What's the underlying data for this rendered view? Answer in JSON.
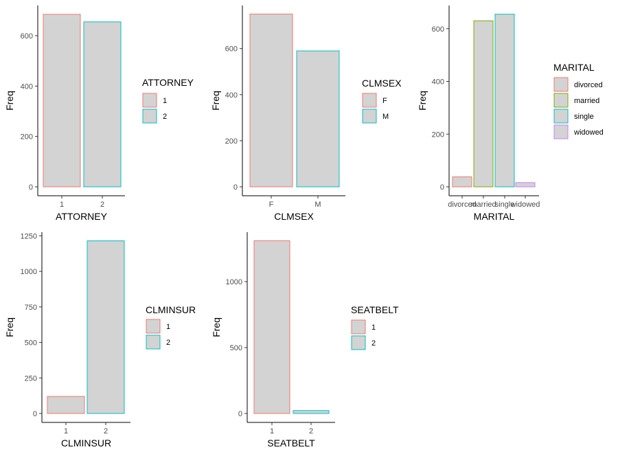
{
  "chart_data": [
    {
      "type": "bar",
      "xlabel": "ATTORNEY",
      "ylabel": "Freq",
      "categories": [
        "1",
        "2"
      ],
      "values": [
        685,
        655
      ],
      "colors": [
        "#F8766D",
        "#00BFC4"
      ],
      "ylim": [
        0,
        720
      ],
      "yticks": [
        0,
        200,
        400,
        600
      ],
      "legend": {
        "title": "ATTORNEY",
        "entries": [
          "1",
          "2"
        ],
        "placement": "right"
      },
      "bar_fill": "#d3d3d3",
      "grid": false
    },
    {
      "type": "bar",
      "xlabel": "CLMSEX",
      "ylabel": "Freq",
      "categories": [
        "F",
        "M"
      ],
      "values": [
        750,
        590
      ],
      "colors": [
        "#F8766D",
        "#00BFC4"
      ],
      "ylim": [
        0,
        787
      ],
      "yticks": [
        0,
        200,
        400,
        600
      ],
      "legend": {
        "title": "CLMSEX",
        "entries": [
          "F",
          "M"
        ],
        "placement": "right"
      },
      "bar_fill": "#d3d3d3",
      "grid": false
    },
    {
      "type": "bar",
      "xlabel": "MARITAL",
      "ylabel": "Freq",
      "categories": [
        "divorced",
        "married",
        "single",
        "widowed"
      ],
      "values": [
        38,
        630,
        655,
        16
      ],
      "colors": [
        "#F8766D",
        "#7CAE00",
        "#00BFC4",
        "#C77CFF"
      ],
      "ylim": [
        0,
        688
      ],
      "yticks": [
        0,
        200,
        400,
        600
      ],
      "legend": {
        "title": "MARITAL",
        "entries": [
          "divorced",
          "married",
          "single",
          "widowed"
        ],
        "placement": "right"
      },
      "bar_fill": "#d3d3d3",
      "grid": false
    },
    {
      "type": "bar",
      "xlabel": "CLMINSUR",
      "ylabel": "Freq",
      "categories": [
        "1",
        "2"
      ],
      "values": [
        120,
        1215
      ],
      "colors": [
        "#F8766D",
        "#00BFC4"
      ],
      "ylim": [
        0,
        1276
      ],
      "yticks": [
        0,
        250,
        500,
        750,
        1000,
        1250
      ],
      "legend": {
        "title": "CLMINSUR",
        "entries": [
          "1",
          "2"
        ],
        "placement": "right"
      },
      "bar_fill": "#d3d3d3",
      "grid": false
    },
    {
      "type": "bar",
      "xlabel": "SEATBELT",
      "ylabel": "Freq",
      "categories": [
        "1",
        "2"
      ],
      "values": [
        1310,
        22
      ],
      "colors": [
        "#F8766D",
        "#00BFC4"
      ],
      "ylim": [
        0,
        1375
      ],
      "yticks": [
        0,
        500,
        1000
      ],
      "legend": {
        "title": "SEATBELT",
        "entries": [
          "1",
          "2"
        ],
        "placement": "right"
      },
      "bar_fill": "#d3d3d3",
      "grid": false
    }
  ]
}
